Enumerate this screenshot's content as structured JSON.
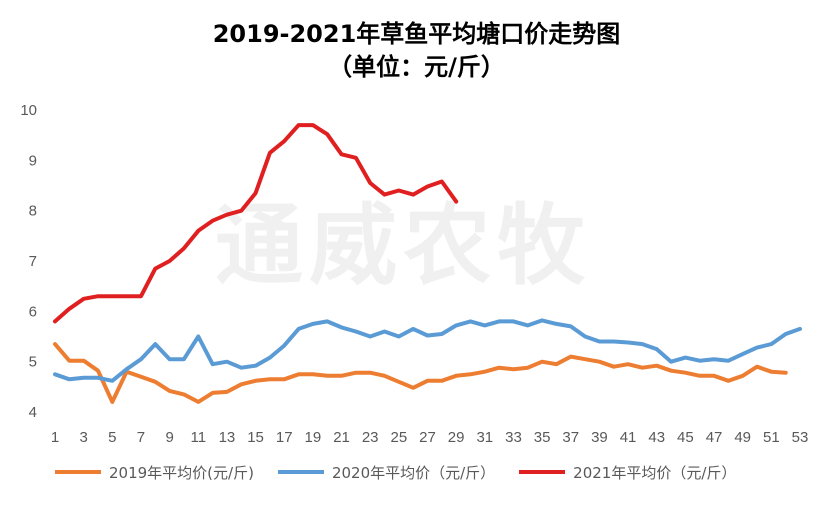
{
  "title": "2019-2021年草鱼平均塘口价走势图",
  "subtitle": "（单位：元/斤）",
  "watermark": "通威农牧",
  "chart_data": {
    "type": "line",
    "title": "2019-2021年草鱼平均塘口价走势图",
    "subtitle": "（单位：元/斤）",
    "xlabel": "",
    "ylabel": "",
    "ylim": [
      4,
      10
    ],
    "yticks": [
      4,
      5,
      6,
      7,
      8,
      9,
      10
    ],
    "xlim": [
      1,
      53
    ],
    "xticks": [
      1,
      3,
      5,
      7,
      9,
      11,
      13,
      15,
      17,
      19,
      21,
      23,
      25,
      27,
      29,
      31,
      33,
      35,
      37,
      39,
      41,
      43,
      45,
      47,
      49,
      51,
      53
    ],
    "grid": false,
    "legend_position": "bottom",
    "series": [
      {
        "name": "2019年平均价(元/斤)",
        "color": "#ED7D31",
        "x": [
          1,
          2,
          3,
          4,
          5,
          6,
          7,
          8,
          9,
          10,
          11,
          12,
          13,
          14,
          15,
          16,
          17,
          18,
          19,
          20,
          21,
          22,
          23,
          24,
          25,
          26,
          27,
          28,
          29,
          30,
          31,
          32,
          33,
          34,
          35,
          36,
          37,
          38,
          39,
          40,
          41,
          42,
          43,
          44,
          45,
          46,
          47,
          48,
          49,
          50,
          51,
          52
        ],
        "values": [
          5.35,
          5.02,
          5.02,
          4.82,
          4.2,
          4.8,
          4.7,
          4.6,
          4.42,
          4.35,
          4.2,
          4.38,
          4.4,
          4.55,
          4.62,
          4.65,
          4.65,
          4.75,
          4.75,
          4.72,
          4.72,
          4.78,
          4.78,
          4.72,
          4.6,
          4.48,
          4.62,
          4.62,
          4.72,
          4.75,
          4.8,
          4.88,
          4.85,
          4.88,
          5.0,
          4.95,
          5.1,
          5.05,
          5.0,
          4.9,
          4.95,
          4.88,
          4.92,
          4.82,
          4.78,
          4.72,
          4.72,
          4.62,
          4.72,
          4.9,
          4.8,
          4.78
        ]
      },
      {
        "name": "2020年平均价（元/斤）",
        "color": "#5B9BD5",
        "x": [
          1,
          2,
          3,
          4,
          5,
          6,
          7,
          8,
          9,
          10,
          11,
          12,
          13,
          14,
          15,
          16,
          17,
          18,
          19,
          20,
          21,
          22,
          23,
          24,
          25,
          26,
          27,
          28,
          29,
          30,
          31,
          32,
          33,
          34,
          35,
          36,
          37,
          38,
          39,
          40,
          41,
          42,
          43,
          44,
          45,
          46,
          47,
          48,
          49,
          50,
          51,
          52,
          53
        ],
        "values": [
          4.75,
          4.65,
          4.68,
          4.68,
          4.62,
          4.85,
          5.05,
          5.35,
          5.05,
          5.05,
          5.5,
          4.95,
          5.0,
          4.88,
          4.92,
          5.08,
          5.32,
          5.65,
          5.75,
          5.8,
          5.68,
          5.6,
          5.5,
          5.6,
          5.5,
          5.65,
          5.52,
          5.55,
          5.72,
          5.8,
          5.72,
          5.8,
          5.8,
          5.72,
          5.82,
          5.75,
          5.7,
          5.5,
          5.4,
          5.4,
          5.38,
          5.35,
          5.25,
          5.0,
          5.08,
          5.02,
          5.05,
          5.02,
          5.15,
          5.28,
          5.35,
          5.55,
          5.65
        ]
      },
      {
        "name": "2021年平均价（元/斤）",
        "color": "#E02020",
        "x": [
          1,
          2,
          3,
          4,
          5,
          6,
          7,
          8,
          9,
          10,
          11,
          12,
          13,
          14,
          15,
          16,
          17,
          18,
          19,
          20,
          21,
          22,
          23,
          24,
          25,
          26,
          27,
          28,
          29
        ],
        "values": [
          5.8,
          6.05,
          6.25,
          6.3,
          6.3,
          6.3,
          6.3,
          6.85,
          7.0,
          7.25,
          7.6,
          7.8,
          7.92,
          8.0,
          8.35,
          9.15,
          9.38,
          9.7,
          9.7,
          9.52,
          9.12,
          9.05,
          8.55,
          8.32,
          8.4,
          8.32,
          8.48,
          8.58,
          8.18
        ]
      }
    ]
  }
}
